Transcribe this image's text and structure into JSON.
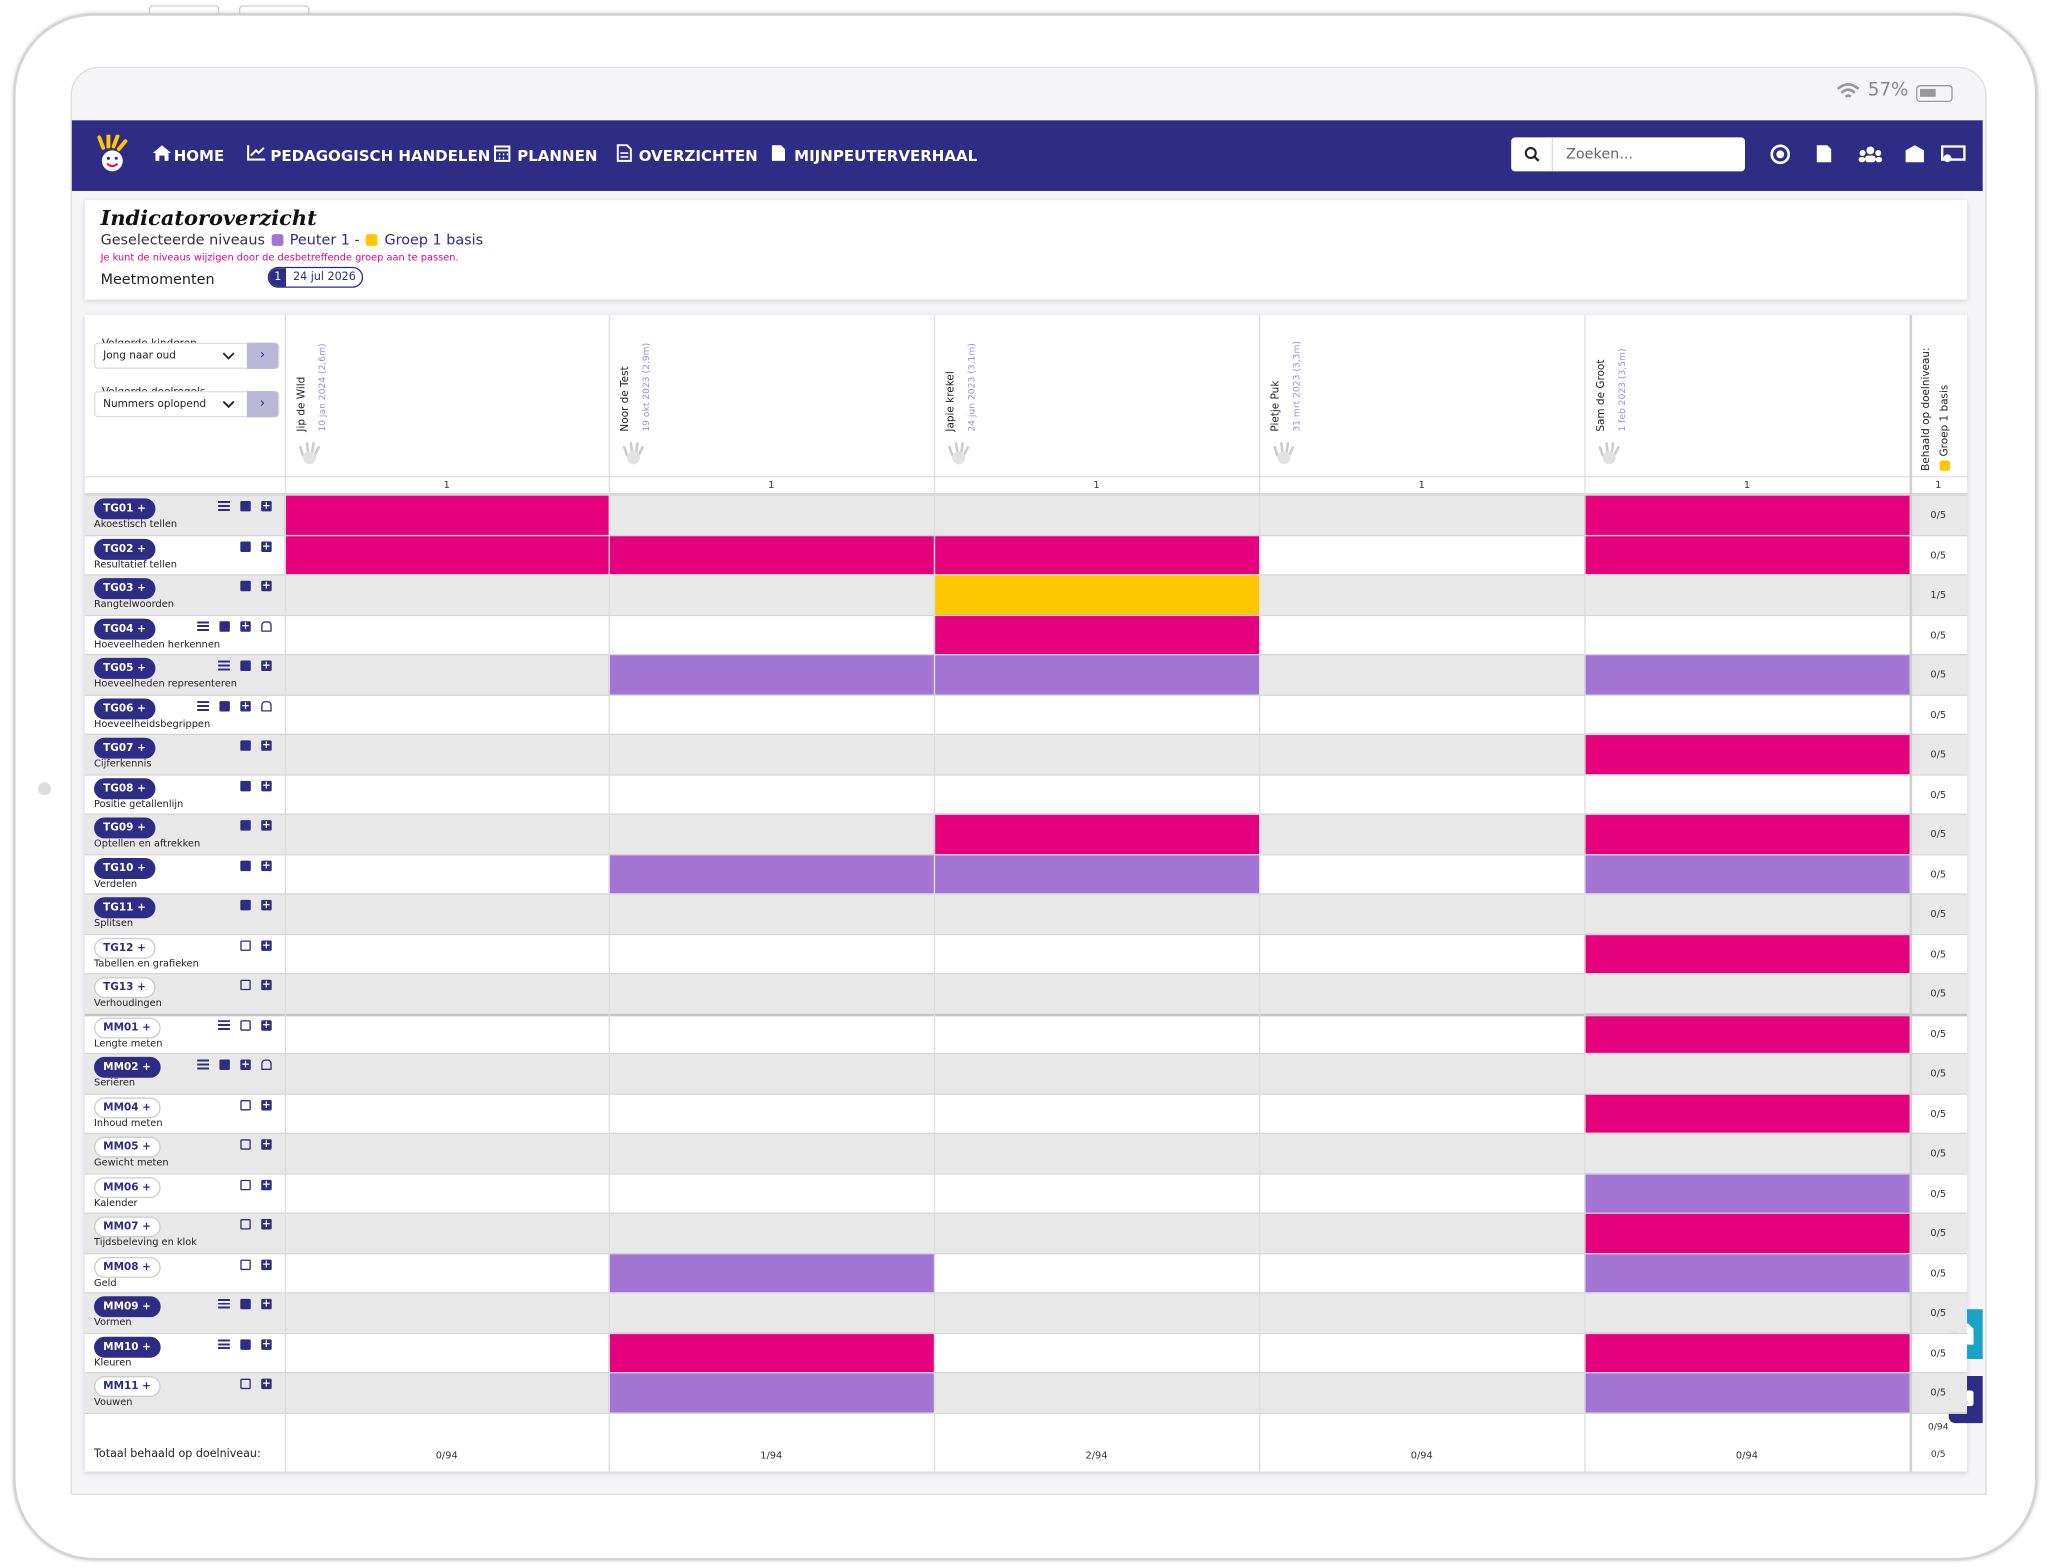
{
  "status": {
    "battery": "57%"
  },
  "nav": {
    "items": [
      "HOME",
      "PEDAGOGISCH HANDELEN",
      "PLANNEN",
      "OVERZICHTEN",
      "MIJNPEUTERVERHAAL"
    ],
    "search_placeholder": "Zoeken..."
  },
  "header": {
    "title": "Indicatoroverzicht",
    "levels_label": "Geselecteerde niveaus",
    "levels": [
      {
        "name": "Peuter 1 -",
        "color": "#a274d4"
      },
      {
        "name": "Groep 1 basis",
        "color": "#ffc700"
      }
    ],
    "note": "Je kunt de niveaus wijzigen door de desbetreffende groep aan te passen.",
    "moments_label": "Meetmomenten",
    "moment": {
      "number": 1,
      "date": "24 jul 2026"
    }
  },
  "controls": {
    "children_order_label": "Volgorde kinderen",
    "children_order": "Jong naar oud",
    "goals_order_label": "Volgorde doelregels",
    "goals_order": "Nummers oplopend"
  },
  "children": [
    {
      "name": "Jip de Wild",
      "birth": "10 jan 2024 (2,6m)",
      "moment": 1
    },
    {
      "name": "Noor de Test",
      "birth": "19 okt 2023 (2,9m)",
      "moment": 1
    },
    {
      "name": "Japie krekel",
      "birth": "24 jun 2023 (3,1m)",
      "moment": 1
    },
    {
      "name": "Pietje Puk",
      "birth": "31 mrt 2023 (3,3m)",
      "moment": 1
    },
    {
      "name": "Sam de Groot",
      "birth": "1 feb 2023 (3,5m)",
      "moment": 1
    }
  ],
  "result_column": {
    "label": "Behaald op doelniveau:",
    "level": "Groep 1 basis",
    "level_color": "#ffc700",
    "moment": 1
  },
  "rows": [
    {
      "code": "TG01 +",
      "name": "Akoestisch tellen",
      "filled": true,
      "sliders": true,
      "lock": false,
      "cells": [
        "#e5007d",
        null,
        null,
        null,
        "#e5007d"
      ],
      "result": "0/5"
    },
    {
      "code": "TG02 +",
      "name": "Resultatief tellen",
      "filled": true,
      "sliders": false,
      "lock": false,
      "cells": [
        "#e5007d",
        "#e5007d",
        "#e5007d",
        null,
        "#e5007d"
      ],
      "result": "0/5"
    },
    {
      "code": "TG03 +",
      "name": "Rangtelwoorden",
      "filled": true,
      "sliders": false,
      "lock": false,
      "cells": [
        null,
        null,
        "#ffc700",
        null,
        null
      ],
      "result": "1/5"
    },
    {
      "code": "TG04 +",
      "name": "Hoeveelheden herkennen",
      "filled": true,
      "sliders": true,
      "lock": true,
      "cells": [
        null,
        null,
        "#e5007d",
        null,
        null
      ],
      "result": "0/5"
    },
    {
      "code": "TG05 +",
      "name": "Hoeveelheden representeren",
      "filled": true,
      "sliders": true,
      "lock": false,
      "cells": [
        null,
        "#a274d4",
        "#a274d4",
        null,
        "#a274d4"
      ],
      "result": "0/5"
    },
    {
      "code": "TG06 +",
      "name": "Hoeveelheidsbegrippen",
      "filled": true,
      "sliders": true,
      "lock": true,
      "cells": [
        null,
        null,
        null,
        null,
        null
      ],
      "result": "0/5"
    },
    {
      "code": "TG07 +",
      "name": "Cijferkennis",
      "filled": true,
      "sliders": false,
      "lock": false,
      "cells": [
        null,
        null,
        null,
        null,
        "#e5007d"
      ],
      "result": "0/5"
    },
    {
      "code": "TG08 +",
      "name": "Positie getallenlijn",
      "filled": true,
      "sliders": false,
      "lock": false,
      "cells": [
        null,
        null,
        null,
        null,
        null
      ],
      "result": "0/5"
    },
    {
      "code": "TG09 +",
      "name": "Optellen en aftrekken",
      "filled": true,
      "sliders": false,
      "lock": false,
      "cells": [
        null,
        null,
        "#e5007d",
        null,
        "#e5007d"
      ],
      "result": "0/5"
    },
    {
      "code": "TG10 +",
      "name": "Verdelen",
      "filled": true,
      "sliders": false,
      "lock": false,
      "cells": [
        null,
        "#a274d4",
        "#a274d4",
        null,
        "#a274d4"
      ],
      "result": "0/5"
    },
    {
      "code": "TG11 +",
      "name": "Splitsen",
      "filled": true,
      "sliders": false,
      "lock": false,
      "cells": [
        null,
        null,
        null,
        null,
        null
      ],
      "result": "0/5"
    },
    {
      "code": "TG12 +",
      "name": "Tabellen en grafieken",
      "filled": false,
      "sliders": false,
      "lock": false,
      "cells": [
        null,
        null,
        null,
        null,
        "#e5007d"
      ],
      "result": "0/5"
    },
    {
      "code": "TG13 +",
      "name": "Verhoudingen",
      "filled": false,
      "sliders": false,
      "lock": false,
      "cells": [
        null,
        null,
        null,
        null,
        null
      ],
      "result": "0/5"
    },
    {
      "code": "MM01 +",
      "name": "Lengte meten",
      "filled": false,
      "sliders": true,
      "lock": false,
      "cells": [
        null,
        null,
        null,
        null,
        "#e5007d"
      ],
      "result": "0/5"
    },
    {
      "code": "MM02 +",
      "name": "Seriëren",
      "filled": true,
      "sliders": true,
      "lock": true,
      "cells": [
        null,
        null,
        null,
        null,
        null
      ],
      "result": "0/5"
    },
    {
      "code": "MM04 +",
      "name": "Inhoud meten",
      "filled": false,
      "sliders": false,
      "lock": false,
      "cells": [
        null,
        null,
        null,
        null,
        "#e5007d"
      ],
      "result": "0/5"
    },
    {
      "code": "MM05 +",
      "name": "Gewicht meten",
      "filled": false,
      "sliders": false,
      "lock": false,
      "cells": [
        null,
        null,
        null,
        null,
        null
      ],
      "result": "0/5"
    },
    {
      "code": "MM06 +",
      "name": "Kalender",
      "filled": false,
      "sliders": false,
      "lock": false,
      "cells": [
        null,
        null,
        null,
        null,
        "#a274d4"
      ],
      "result": "0/5"
    },
    {
      "code": "MM07 +",
      "name": "Tijdsbeleving en klok",
      "filled": false,
      "sliders": false,
      "lock": false,
      "cells": [
        null,
        null,
        null,
        null,
        "#e5007d"
      ],
      "result": "0/5"
    },
    {
      "code": "MM08 +",
      "name": "Geld",
      "filled": false,
      "sliders": false,
      "lock": false,
      "cells": [
        null,
        "#a274d4",
        null,
        null,
        "#a274d4"
      ],
      "result": "0/5"
    },
    {
      "code": "MM09 +",
      "name": "Vormen",
      "filled": true,
      "sliders": true,
      "lock": false,
      "cells": [
        null,
        null,
        null,
        null,
        null
      ],
      "result": "0/5"
    },
    {
      "code": "MM10 +",
      "name": "Kleuren",
      "filled": true,
      "sliders": true,
      "lock": false,
      "cells": [
        null,
        "#e5007d",
        null,
        null,
        "#e5007d"
      ],
      "result": "0/5"
    },
    {
      "code": "MM11 +",
      "name": "Vouwen",
      "filled": false,
      "sliders": false,
      "lock": false,
      "cells": [
        null,
        "#a274d4",
        null,
        null,
        "#a274d4"
      ],
      "result": "0/5"
    }
  ],
  "totals": {
    "label": "Totaal behaald op doelniveau:",
    "values": [
      "0/94",
      "1/94",
      "2/94",
      "0/94",
      "0/94"
    ],
    "result": [
      "0/94",
      "0/5"
    ]
  }
}
